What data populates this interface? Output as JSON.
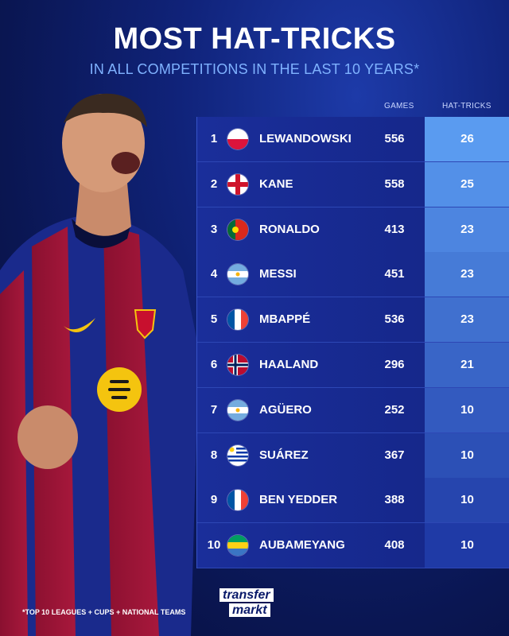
{
  "header": {
    "title": "MOST HAT-TRICKS",
    "subtitle": "IN ALL COMPETITIONS IN THE LAST 10 YEARS*"
  },
  "table": {
    "col_games": "GAMES",
    "col_hattricks": "HAT-TRICKS",
    "rows": [
      {
        "rank": "1",
        "flag": "poland",
        "name": "LEWANDOWSKI",
        "games": "556",
        "hattricks": "26"
      },
      {
        "rank": "2",
        "flag": "england",
        "name": "KANE",
        "games": "558",
        "hattricks": "25"
      },
      {
        "rank": "3",
        "flag": "portugal",
        "name": "RONALDO",
        "games": "413",
        "hattricks": "23"
      },
      {
        "rank": "4",
        "flag": "argentina",
        "name": "MESSI",
        "games": "451",
        "hattricks": "23"
      },
      {
        "rank": "5",
        "flag": "france",
        "name": "MBAPPÉ",
        "games": "536",
        "hattricks": "23"
      },
      {
        "rank": "6",
        "flag": "norway",
        "name": "HAALAND",
        "games": "296",
        "hattricks": "21"
      },
      {
        "rank": "7",
        "flag": "argentina",
        "name": "AGÜERO",
        "games": "252",
        "hattricks": "10"
      },
      {
        "rank": "8",
        "flag": "uruguay",
        "name": "SUÁREZ",
        "games": "367",
        "hattricks": "10"
      },
      {
        "rank": "9",
        "flag": "france",
        "name": "BEN YEDDER",
        "games": "388",
        "hattricks": "10"
      },
      {
        "rank": "10",
        "flag": "gabon",
        "name": "AUBAMEYANG",
        "games": "408",
        "hattricks": "10"
      }
    ]
  },
  "footer": {
    "footnote": "*TOP 10 LEAGUES + CUPS + NATIONAL TEAMS",
    "logo_line1": "transfer",
    "logo_line2": "markt"
  },
  "colors": {
    "accent_light_blue": "#7fb2ff",
    "hattrick_top": "#5a9bf0",
    "hattrick_bottom": "#1f3aa6",
    "background": "#0a1652"
  }
}
